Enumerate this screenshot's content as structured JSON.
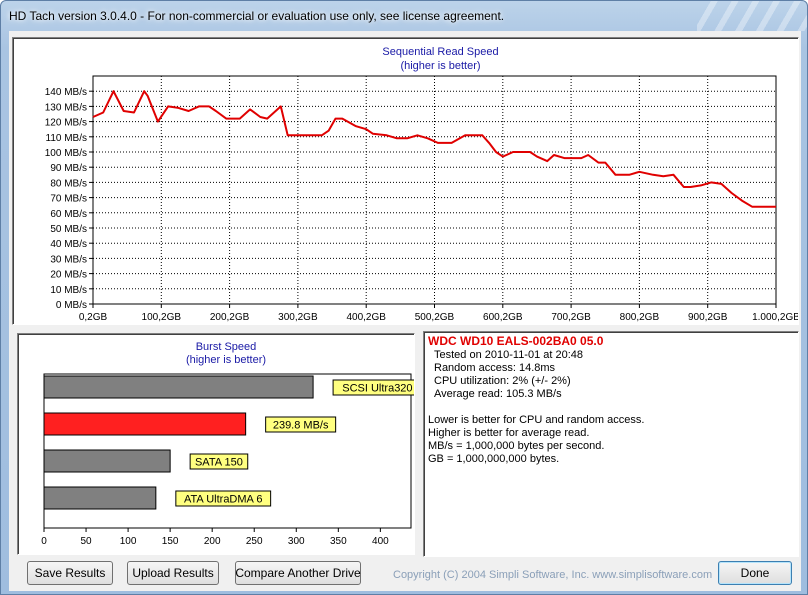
{
  "window": {
    "title": "HD Tach version 3.0.4.0  - For non-commercial or evaluation use only, see license agreement."
  },
  "seq_chart": {
    "title_line1": "Sequential Read Speed",
    "title_line2": "(higher is better)"
  },
  "burst_chart": {
    "title_line1": "Burst Speed",
    "title_line2": "(higher is better)"
  },
  "info": {
    "drive_name": "WDC WD10 EALS-002BA0 05.0",
    "tested_on": "Tested on 2010-11-01 at 20:48",
    "random_access": "Random access: 14.8ms",
    "cpu_util": "CPU utilization: 2% (+/- 2%)",
    "avg_read": "Average read: 105.3 MB/s",
    "note1": "Lower is better for CPU and random access.",
    "note2": "Higher is better for average read.",
    "note3": "MB/s = 1,000,000 bytes per second.",
    "note4": "GB = 1,000,000,000 bytes."
  },
  "buttons": {
    "save": "Save Results",
    "upload": "Upload Results",
    "compare": "Compare Another Drive",
    "done": "Done"
  },
  "copyright": "Copyright (C) 2004 Simpli Software, Inc. www.simplisoftware.com",
  "colors": {
    "line": "#e00000",
    "bar_gray": "#808080",
    "bar_red": "#ff2020",
    "label_bg": "#ffff80",
    "title_blue": "#1a1aa6"
  },
  "chart_data": [
    {
      "type": "line",
      "title": "Sequential Read Speed",
      "subtitle": "(higher is better)",
      "x_tick_labels": [
        "0,2GB",
        "100,2GB",
        "200,2GB",
        "300,2GB",
        "400,2GB",
        "500,2GB",
        "600,2GB",
        "700,2GB",
        "800,2GB",
        "900,2GB",
        "1.000,2GB"
      ],
      "y_tick_labels": [
        "0 MB/s",
        "10 MB/s",
        "20 MB/s",
        "30 MB/s",
        "40 MB/s",
        "50 MB/s",
        "60 MB/s",
        "70 MB/s",
        "80 MB/s",
        "90 MB/s",
        "100 MB/s",
        "110 MB/s",
        "120 MB/s",
        "130 MB/s",
        "140 MB/s"
      ],
      "xlim": [
        0,
        1000
      ],
      "ylim": [
        0,
        150
      ],
      "grid": true,
      "series": [
        {
          "x": [
            0,
            15,
            30,
            45,
            60,
            75,
            80,
            95,
            110,
            125,
            140,
            155,
            170,
            180,
            195,
            215,
            230,
            245,
            255,
            275,
            285,
            300,
            320,
            335,
            345,
            355,
            365,
            385,
            400,
            410,
            430,
            445,
            460,
            475,
            490,
            505,
            525,
            545,
            560,
            570,
            580,
            590,
            600,
            615,
            630,
            640,
            650,
            665,
            675,
            690,
            700,
            715,
            725,
            740,
            750,
            765,
            785,
            800,
            820,
            835,
            850,
            865,
            875,
            890,
            905,
            920,
            935,
            950,
            965,
            975,
            985,
            1000
          ],
          "y": [
            123,
            126,
            140,
            127,
            126,
            140,
            137,
            120,
            130,
            129,
            127,
            130,
            130,
            127,
            122,
            122,
            128,
            123,
            122,
            130,
            111,
            111,
            111,
            111,
            114,
            122,
            122,
            117,
            115,
            112,
            111,
            109,
            109,
            111,
            109,
            106,
            106,
            111,
            111,
            111,
            106,
            100,
            97,
            100,
            100,
            100,
            97,
            94,
            98,
            96,
            96,
            96,
            98,
            93,
            93,
            85,
            85,
            87,
            85,
            84,
            85,
            77,
            77,
            78,
            80,
            79,
            73,
            68,
            64,
            64,
            64,
            64
          ]
        }
      ]
    },
    {
      "type": "bar",
      "title": "Burst Speed",
      "subtitle": "(higher is better)",
      "orientation": "horizontal",
      "categories": [
        "SCSI Ultra320",
        "239.8 MB/s",
        "SATA 150",
        "ATA UltraDMA 6"
      ],
      "values": [
        320,
        239.8,
        150,
        133
      ],
      "highlight_index": 1,
      "x_tick_labels": [
        "0",
        "50",
        "100",
        "150",
        "200",
        "250",
        "300",
        "350",
        "400"
      ],
      "xlim": [
        0,
        440
      ]
    }
  ]
}
